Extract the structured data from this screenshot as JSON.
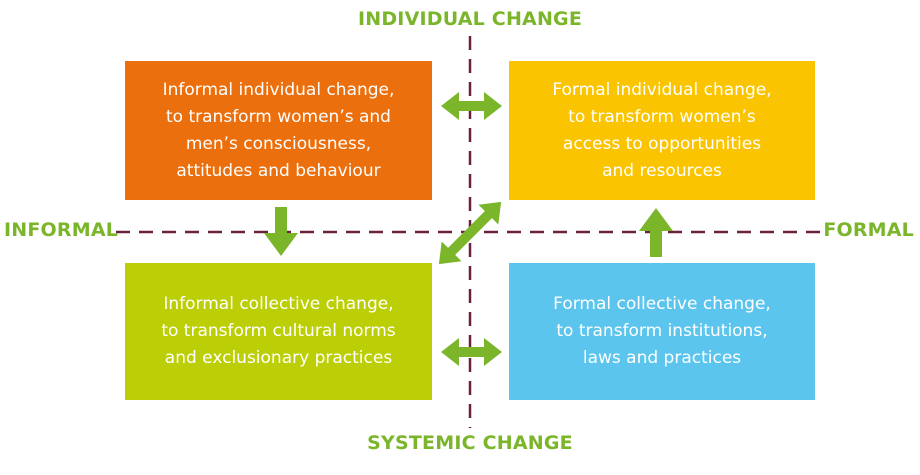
{
  "axes": {
    "top": "INDIVIDUAL CHANGE",
    "bottom": "SYSTEMIC CHANGE",
    "left": "INFORMAL",
    "right": "FORMAL"
  },
  "quadrants": {
    "top_left": {
      "lines": [
        "Informal individual change,",
        "to transform women’s and",
        "men’s consciousness,",
        "attitudes and behaviour"
      ],
      "color": "#ec6f0e"
    },
    "top_right": {
      "lines": [
        "Formal individual change,",
        "to transform women’s",
        "access to opportunities",
        "and resources"
      ],
      "color": "#fbc400"
    },
    "bottom_left": {
      "lines": [
        "Informal collective change,",
        "to transform cultural norms",
        "and exclusionary practices"
      ],
      "color": "#bccf06"
    },
    "bottom_right": {
      "lines": [
        "Formal collective change,",
        "to transform institutions,",
        "laws and practices"
      ],
      "color": "#5bc5ee"
    }
  },
  "colors": {
    "axis_line": "#6b2040",
    "arrow": "#7ab52a",
    "label": "#7ab52a"
  }
}
